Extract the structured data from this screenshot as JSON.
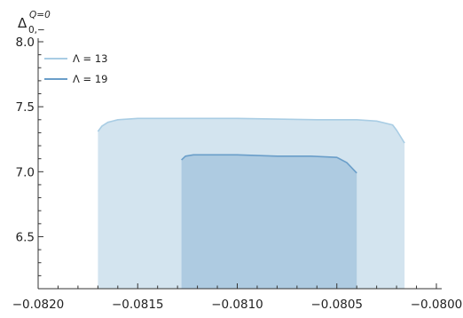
{
  "chart_data": {
    "type": "area",
    "title": "",
    "ylabel": {
      "base": "Δ",
      "sub": "0,−",
      "sup": "Q=0"
    },
    "xlabel": "",
    "xlim": [
      -0.082,
      -0.08
    ],
    "ylim": [
      6.1,
      8.0
    ],
    "x_ticks": [
      {
        "value": -0.082,
        "label": "−0.0820"
      },
      {
        "value": -0.0815,
        "label": "−0.0815"
      },
      {
        "value": -0.081,
        "label": "−0.0810"
      },
      {
        "value": -0.0805,
        "label": "−0.0805"
      },
      {
        "value": -0.08,
        "label": "−0.0800"
      }
    ],
    "y_ticks": [
      {
        "value": 6.5,
        "label": "6.5"
      },
      {
        "value": 7.0,
        "label": "7.0"
      },
      {
        "value": 7.5,
        "label": "7.5"
      },
      {
        "value": 8.0,
        "label": "8.0"
      }
    ],
    "legend_position": "top-left",
    "series": [
      {
        "name": "Λ = 13",
        "line_color": "#a9cde4",
        "fill_color": "#d3e4ef",
        "fill_to": 6.1,
        "x": [
          -0.0817,
          -0.08168,
          -0.08165,
          -0.0816,
          -0.0815,
          -0.0814,
          -0.081,
          -0.0806,
          -0.0804,
          -0.0803,
          -0.08022,
          -0.0802,
          -0.08016
        ],
        "y": [
          7.31,
          7.35,
          7.38,
          7.4,
          7.41,
          7.41,
          7.41,
          7.4,
          7.4,
          7.39,
          7.36,
          7.32,
          7.22
        ]
      },
      {
        "name": "Λ = 19",
        "line_color": "#6a9ec9",
        "fill_color": "#aecbe1",
        "fill_to": 6.1,
        "x": [
          -0.08128,
          -0.08126,
          -0.08122,
          -0.08115,
          -0.081,
          -0.0808,
          -0.08063,
          -0.0805,
          -0.08045,
          -0.0804
        ],
        "y": [
          7.09,
          7.12,
          7.13,
          7.13,
          7.13,
          7.12,
          7.12,
          7.11,
          7.07,
          6.99
        ]
      }
    ]
  }
}
